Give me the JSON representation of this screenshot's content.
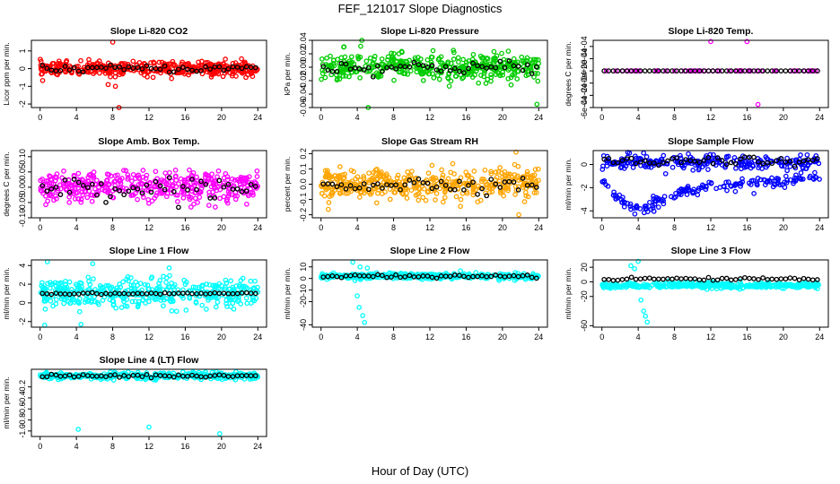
{
  "figure": {
    "title": "FEF_121017  Slope Diagnostics",
    "xlabel": "Hour of Day (UTC)"
  },
  "chart_data": [
    {
      "type": "scatter",
      "title": "Slope Li-820 CO2",
      "ylabel": "Licor ppm per min.",
      "xlim": [
        0,
        24
      ],
      "ylim": [
        -2.2,
        1.6
      ],
      "yticks": [
        -2,
        -1,
        0,
        1
      ],
      "color": "#ff0000",
      "y_center": 0,
      "spread": 0.35,
      "black_spread": 0.2,
      "outliers": [
        [
          8,
          1.5
        ],
        [
          8.7,
          -2.2
        ],
        [
          7.5,
          -0.9
        ],
        [
          8.3,
          -1.0
        ]
      ]
    },
    {
      "type": "scatter",
      "title": "Slope Li-820 Pressure",
      "ylabel": "kPa per min.",
      "xlim": [
        0,
        24
      ],
      "ylim": [
        -0.06,
        0.04
      ],
      "yticks": [
        -0.06,
        -0.04,
        -0.02,
        0.0,
        0.02,
        0.04
      ],
      "ytick_labels": [
        "-0.06",
        "-0.04",
        "-0.02",
        "0.00",
        "0.02",
        "0.04"
      ],
      "color": "#00cc00",
      "y_center": 0,
      "spread": 0.018,
      "black_spread": 0.01,
      "outliers": [
        [
          4.5,
          0.04
        ],
        [
          2.5,
          0.03
        ],
        [
          23.8,
          -0.055
        ],
        [
          5.2,
          -0.06
        ]
      ]
    },
    {
      "type": "scatter",
      "title": "Slope Li-820 Temp.",
      "ylabel": "degrees C per min.",
      "xlim": [
        0,
        24
      ],
      "ylim": [
        -0.0006,
        0.0005
      ],
      "yticks": [
        -0.0006,
        -0.0004,
        -0.0002,
        0,
        0.0002,
        0.0004
      ],
      "ytick_labels": [
        "-6e-04",
        "-4e-04",
        "-2e-04",
        "0e+00",
        "2e-04",
        "4e-04"
      ],
      "color": "#ff00ff",
      "y_center": 0,
      "spread": 0,
      "black_spread": 0,
      "outliers": [
        [
          12,
          0.00048
        ],
        [
          16,
          0.00048
        ],
        [
          17.2,
          -0.00055
        ]
      ]
    },
    {
      "type": "scatter",
      "title": "Slope Amb. Box Temp.",
      "ylabel": "degrees C per min.",
      "xlim": [
        0,
        24
      ],
      "ylim": [
        -0.1,
        0.12
      ],
      "yticks": [
        -0.1,
        -0.05,
        0,
        0.05,
        0.1
      ],
      "ytick_labels": [
        "-0.10",
        "-0.05",
        "0.00",
        "0.05",
        "0.10"
      ],
      "color": "#ff00ff",
      "y_center": 0,
      "spread": 0.045,
      "black_spread": 0.035,
      "outliers": []
    },
    {
      "type": "scatter",
      "title": "Slope Gas Stream RH",
      "ylabel": "percent per min.",
      "xlim": [
        0,
        24
      ],
      "ylim": [
        -0.22,
        0.22
      ],
      "yticks": [
        -0.2,
        -0.1,
        0,
        0.1,
        0.2
      ],
      "ytick_labels": [
        "-0.2",
        "-0.1",
        "0.0",
        "0.1",
        "0.2"
      ],
      "color": "#ffa500",
      "y_center": 0,
      "spread": 0.09,
      "black_spread": 0.05,
      "outliers": [
        [
          21.5,
          0.21
        ],
        [
          21.8,
          -0.2
        ]
      ]
    },
    {
      "type": "scatter",
      "title": "Slope Sample Flow",
      "ylabel": "ml/min per min.",
      "xlim": [
        0,
        24
      ],
      "ylim": [
        -4.6,
        1.2
      ],
      "yticks": [
        -4,
        -2,
        0
      ],
      "color": "#0000ff",
      "y_center": 0,
      "spread": 0.3,
      "black_spread": 0.25,
      "trend": "sample_flow",
      "outliers": []
    },
    {
      "type": "scatter",
      "title": "Slope Line 1 Flow",
      "ylabel": "ml/min per min.",
      "xlim": [
        0,
        24
      ],
      "ylim": [
        -2.6,
        4.6
      ],
      "yticks": [
        -2,
        0,
        2,
        4
      ],
      "color": "#00ffff",
      "y_center": 1,
      "spread": 1.4,
      "black_spread": 0.1,
      "outliers": [
        [
          0.8,
          4.4
        ],
        [
          5.8,
          4.2
        ],
        [
          0.5,
          -2.4
        ],
        [
          4.5,
          -2.3
        ]
      ]
    },
    {
      "type": "scatter",
      "title": "Slope Line 2 Flow",
      "ylabel": "ml/min per min.",
      "xlim": [
        0,
        24
      ],
      "ylim": [
        -42,
        16
      ],
      "yticks": [
        -40,
        -20,
        -10,
        0,
        10
      ],
      "color": "#00ffff",
      "y_center": 2,
      "spread": 2.2,
      "black_spread": 1.5,
      "outliers": [
        [
          3.5,
          14
        ],
        [
          4.2,
          -25
        ],
        [
          4.6,
          -32
        ],
        [
          4.8,
          -38
        ],
        [
          4.0,
          -15
        ],
        [
          5.1,
          9
        ],
        [
          4.3,
          10
        ]
      ]
    },
    {
      "type": "scatter",
      "title": "Slope Line 3 Flow",
      "ylabel": "ml/min per min.",
      "xlim": [
        0,
        24
      ],
      "ylim": [
        -62,
        30
      ],
      "yticks": [
        -60,
        -20,
        0,
        20
      ],
      "color": "#00ffff",
      "y_center": -5,
      "spread": 3.5,
      "black_spread": 2,
      "black_center": 4,
      "outliers": [
        [
          4.0,
          28
        ],
        [
          3.2,
          22
        ],
        [
          4.3,
          -25
        ],
        [
          4.6,
          -40
        ],
        [
          5.0,
          -55
        ],
        [
          4.8,
          -47
        ],
        [
          3.6,
          18
        ]
      ]
    },
    {
      "type": "scatter",
      "title": "Slope Line 4 (LT) Flow",
      "ylabel": "ml/min per min.",
      "xlim": [
        0,
        24
      ],
      "ylim": [
        -1.1,
        0.12
      ],
      "yticks": [
        -1.0,
        -0.8,
        -0.6,
        -0.4,
        -0.2
      ],
      "ytick_labels": [
        "-1.0",
        "-0.8",
        "-0.6",
        "-0.4",
        "-0.2"
      ],
      "color": "#00ffff",
      "y_center": 0,
      "spread": 0.05,
      "black_spread": 0.03,
      "outliers": [
        [
          4.2,
          -0.97
        ],
        [
          12.0,
          -0.93
        ],
        [
          19.8,
          -1.05
        ]
      ]
    }
  ],
  "xticks": [
    0,
    4,
    8,
    12,
    16,
    20,
    24
  ]
}
